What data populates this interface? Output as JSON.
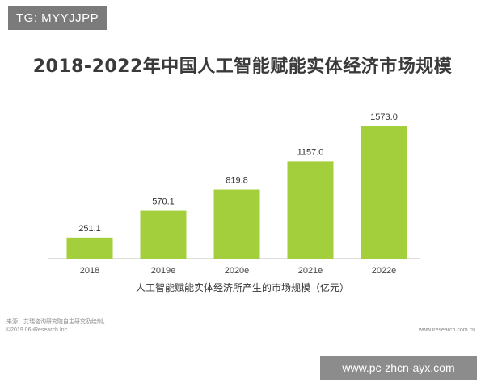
{
  "badge": "TG: MYYJJPP",
  "watermark": "www.pc-zhcn-ayx.com",
  "footer": {
    "source": "来源：艾瑞咨询研究院自主研究及绘制。",
    "copyright": "©2019.06 iResearch Inc.",
    "website": "www.iresearch.com.cn"
  },
  "colors": {
    "bar": "#a3cf3c",
    "axis": "#bdbdbd"
  },
  "chart_data": {
    "type": "bar",
    "title": "2018-2022年中国人工智能赋能实体经济市场规模",
    "xlabel": "人工智能赋能实体经济所产生的市场规模（亿元）",
    "ylabel": "",
    "categories": [
      "2018",
      "2019e",
      "2020e",
      "2021e",
      "2022e"
    ],
    "values": [
      251.1,
      570.1,
      819.8,
      1157.0,
      1573.0
    ],
    "value_labels": [
      "251.1",
      "570.1",
      "819.8",
      "1157.0",
      "1573.0"
    ],
    "ylim": [
      0,
      1573.0
    ],
    "grid": false,
    "legend": "none"
  }
}
